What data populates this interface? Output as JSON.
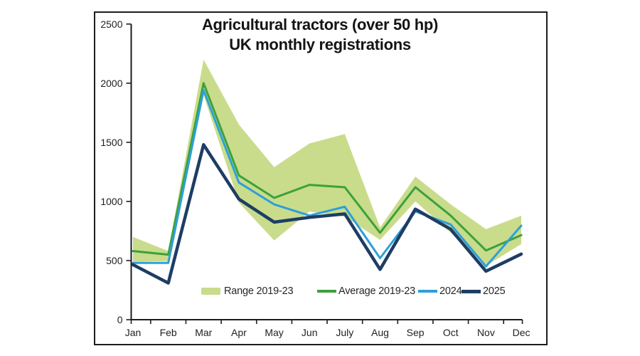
{
  "chart": {
    "title_line1": "Agricultural tractors (over 50 hp)",
    "title_line2": "UK monthly registrations"
  },
  "chart_data": {
    "type": "line",
    "title": "Agricultural tractors (over 50 hp) UK monthly registrations",
    "categories": [
      "Jan",
      "Feb",
      "Mar",
      "Apr",
      "May",
      "Jun",
      "July",
      "Aug",
      "Sep",
      "Oct",
      "Nov",
      "Dec"
    ],
    "xlabel": "",
    "ylabel": "",
    "ylim": [
      0,
      2500
    ],
    "yticks": [
      0,
      500,
      1000,
      1500,
      2000,
      2500
    ],
    "grid": false,
    "legend_position": "bottom inside plot area",
    "band": {
      "name": "Range 2019-23",
      "color": "#c9dc8b",
      "top": [
        700,
        580,
        2200,
        1650,
        1290,
        1490,
        1570,
        780,
        1210,
        975,
        765,
        880
      ],
      "bottom": [
        490,
        495,
        1900,
        990,
        670,
        915,
        870,
        675,
        1000,
        735,
        455,
        640
      ]
    },
    "series": [
      {
        "name": "Average 2019-23",
        "color": "#3ba13c",
        "values": [
          580,
          550,
          2000,
          1220,
          1030,
          1140,
          1120,
          735,
          1120,
          880,
          585,
          715
        ]
      },
      {
        "name": "2024",
        "color": "#2e9fd9",
        "values": [
          480,
          480,
          1940,
          1160,
          975,
          880,
          955,
          520,
          915,
          805,
          450,
          795
        ]
      },
      {
        "name": "2025",
        "color": "#1e3d64",
        "values": [
          465,
          310,
          1480,
          1020,
          825,
          865,
          895,
          425,
          935,
          765,
          410,
          555
        ]
      }
    ]
  }
}
